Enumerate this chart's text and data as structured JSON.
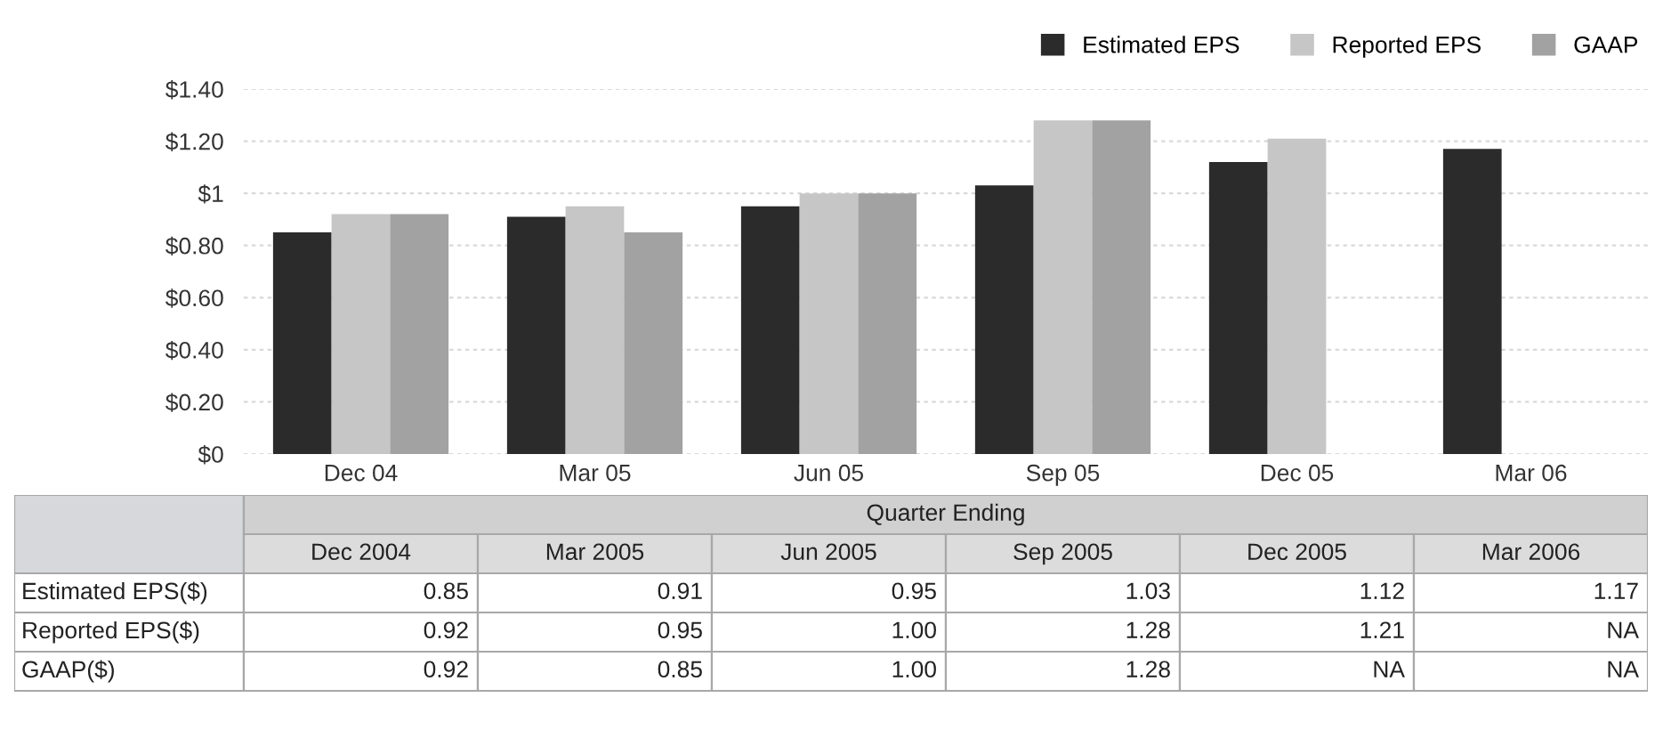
{
  "chart_data": {
    "type": "bar",
    "categories": [
      "Dec 04",
      "Mar 05",
      "Jun 05",
      "Sep 05",
      "Dec 05",
      "Mar 06"
    ],
    "series": [
      {
        "name": "Estimated EPS",
        "color": "#2b2b2b",
        "values": [
          0.85,
          0.91,
          0.95,
          1.03,
          1.12,
          1.17
        ],
        "value_labels": [
          "0.85",
          "0.91",
          "0.95",
          "1.03",
          "1.12",
          "1.17"
        ]
      },
      {
        "name": "Reported EPS",
        "color": "#c6c6c6",
        "values": [
          0.92,
          0.95,
          1.0,
          1.28,
          1.21,
          null
        ],
        "value_labels": [
          "0.92",
          "0.95",
          "1.00",
          "1.28",
          "1.21",
          "NA"
        ]
      },
      {
        "name": "GAAP",
        "color": "#a2a2a2",
        "values": [
          0.92,
          0.85,
          1.0,
          1.28,
          null,
          null
        ],
        "value_labels": [
          "0.92",
          "0.85",
          "1.00",
          "1.28",
          "NA",
          "NA"
        ]
      }
    ],
    "ylim": [
      0,
      1.4
    ],
    "yticks": [
      {
        "value": 0,
        "label": "$0"
      },
      {
        "value": 0.2,
        "label": "$0.20"
      },
      {
        "value": 0.4,
        "label": "$0.40"
      },
      {
        "value": 0.6,
        "label": "$0.60"
      },
      {
        "value": 0.8,
        "label": "$0.80"
      },
      {
        "value": 1,
        "label": "$1"
      },
      {
        "value": 1.2,
        "label": "$1.20"
      },
      {
        "value": 1.4,
        "label": "$1.40"
      }
    ],
    "grid": "y",
    "legend": "top right",
    "annotations": [
      "Quarter Ending",
      "Dec 2004",
      "Mar 2005",
      "Jun 2005",
      "Sep 2005",
      "Dec 2005",
      "Mar 2006",
      "Estimated EPS($)",
      "Reported EPS($)",
      "GAAP($)"
    ]
  }
}
